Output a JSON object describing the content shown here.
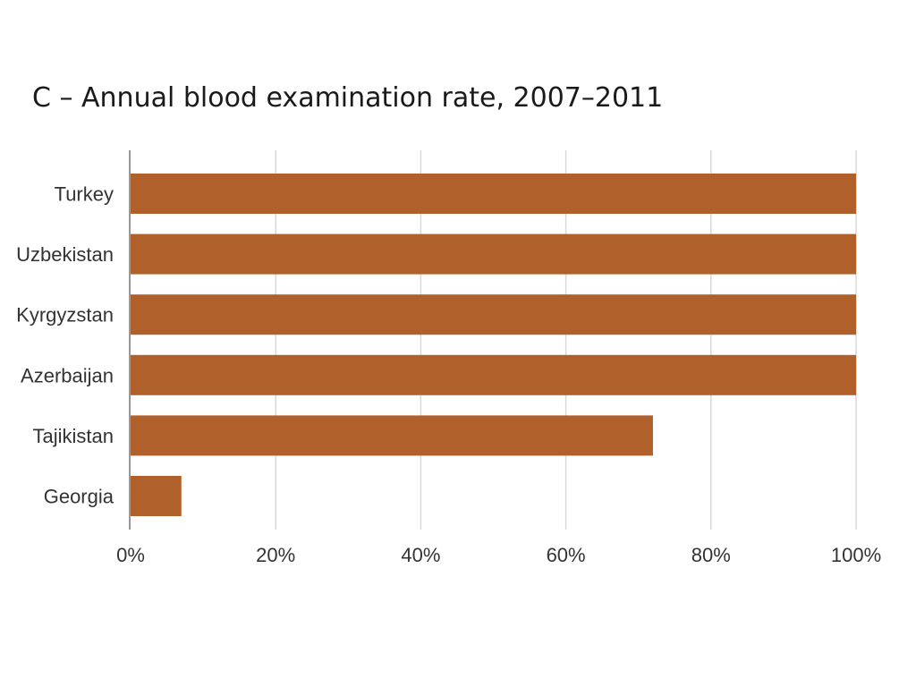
{
  "chart_data": {
    "type": "bar",
    "orientation": "horizontal",
    "title": "C – Annual blood examination rate, 2007–2011",
    "categories": [
      "Turkey",
      "Uzbekistan",
      "Kyrgyzstan",
      "Azerbaijan",
      "Tajikistan",
      "Georgia"
    ],
    "values": [
      100,
      100,
      100,
      100,
      72,
      7
    ],
    "x_ticks": [
      "0%",
      "20%",
      "40%",
      "60%",
      "80%",
      "100%"
    ],
    "xlim": [
      0,
      100
    ],
    "grid": true,
    "bar_color": "#b0602a",
    "grid_color": "#d9d9d9"
  }
}
